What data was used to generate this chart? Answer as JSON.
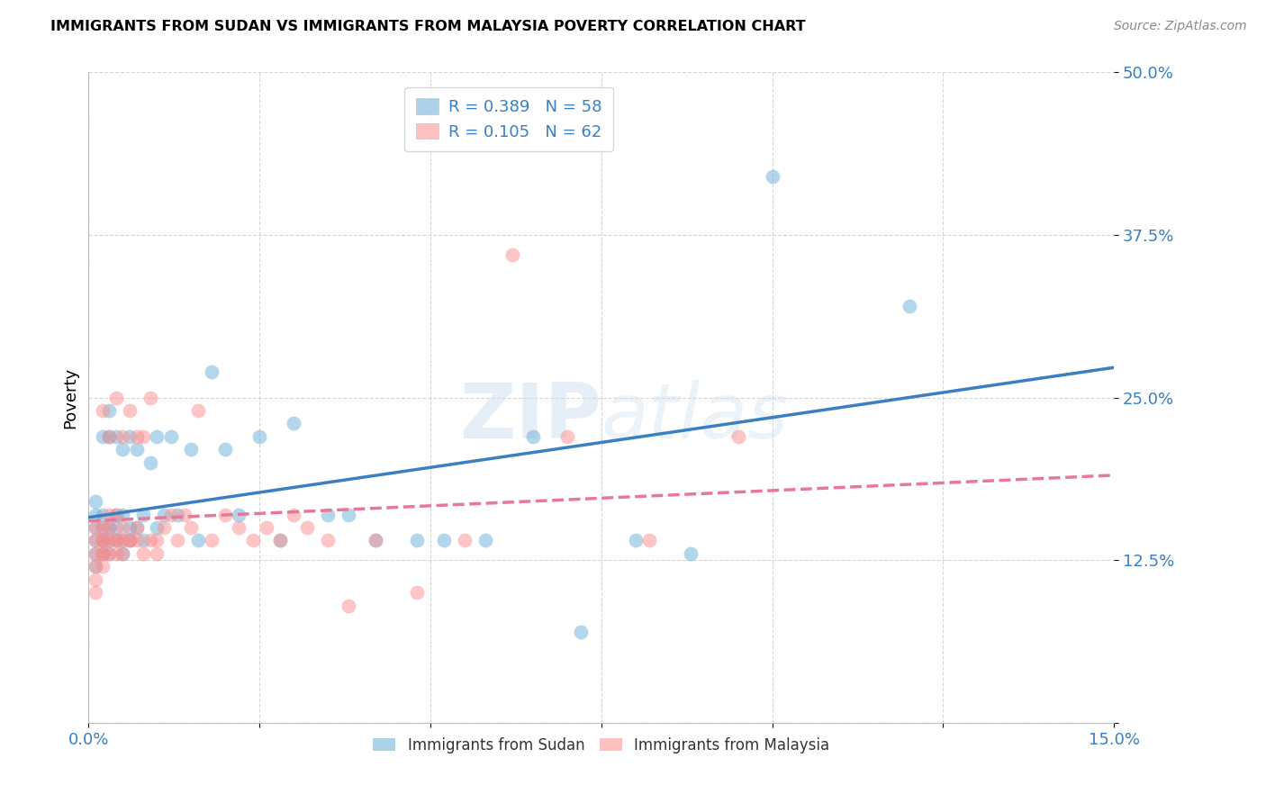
{
  "title": "IMMIGRANTS FROM SUDAN VS IMMIGRANTS FROM MALAYSIA POVERTY CORRELATION CHART",
  "source": "Source: ZipAtlas.com",
  "ylabel": "Poverty",
  "xlim": [
    0.0,
    0.15
  ],
  "ylim": [
    0.0,
    0.5
  ],
  "xticks": [
    0.0,
    0.025,
    0.05,
    0.075,
    0.1,
    0.125,
    0.15
  ],
  "xtick_labels": [
    "0.0%",
    "",
    "",
    "",
    "",
    "",
    "15.0%"
  ],
  "yticks": [
    0.0,
    0.125,
    0.25,
    0.375,
    0.5
  ],
  "ytick_labels": [
    "",
    "12.5%",
    "25.0%",
    "37.5%",
    "50.0%"
  ],
  "sudan_color": "#6baed6",
  "malaysia_color": "#fc8d8d",
  "sudan_line_color": "#3a7fc1",
  "malaysia_line_color": "#e8789a",
  "sudan_R": 0.389,
  "sudan_N": 58,
  "malaysia_R": 0.105,
  "malaysia_N": 62,
  "watermark": "ZIPatlas",
  "sudan_scatter_x": [
    0.001,
    0.001,
    0.001,
    0.001,
    0.001,
    0.001,
    0.002,
    0.002,
    0.002,
    0.002,
    0.002,
    0.002,
    0.003,
    0.003,
    0.003,
    0.003,
    0.003,
    0.004,
    0.004,
    0.004,
    0.004,
    0.005,
    0.005,
    0.005,
    0.005,
    0.006,
    0.006,
    0.006,
    0.007,
    0.007,
    0.008,
    0.008,
    0.009,
    0.01,
    0.01,
    0.011,
    0.012,
    0.013,
    0.015,
    0.016,
    0.018,
    0.02,
    0.022,
    0.025,
    0.028,
    0.03,
    0.035,
    0.038,
    0.042,
    0.048,
    0.052,
    0.058,
    0.065,
    0.072,
    0.08,
    0.088,
    0.1,
    0.12
  ],
  "sudan_scatter_y": [
    0.14,
    0.15,
    0.13,
    0.16,
    0.17,
    0.12,
    0.22,
    0.15,
    0.14,
    0.16,
    0.13,
    0.14,
    0.15,
    0.14,
    0.22,
    0.24,
    0.13,
    0.15,
    0.16,
    0.14,
    0.22,
    0.21,
    0.14,
    0.16,
    0.13,
    0.14,
    0.22,
    0.15,
    0.21,
    0.15,
    0.14,
    0.16,
    0.2,
    0.22,
    0.15,
    0.16,
    0.22,
    0.16,
    0.21,
    0.14,
    0.27,
    0.21,
    0.16,
    0.22,
    0.14,
    0.23,
    0.16,
    0.16,
    0.14,
    0.14,
    0.14,
    0.14,
    0.22,
    0.07,
    0.14,
    0.13,
    0.42,
    0.32
  ],
  "malaysia_scatter_x": [
    0.001,
    0.001,
    0.001,
    0.001,
    0.001,
    0.001,
    0.002,
    0.002,
    0.002,
    0.002,
    0.002,
    0.002,
    0.002,
    0.003,
    0.003,
    0.003,
    0.003,
    0.003,
    0.004,
    0.004,
    0.004,
    0.004,
    0.004,
    0.005,
    0.005,
    0.005,
    0.005,
    0.006,
    0.006,
    0.006,
    0.007,
    0.007,
    0.007,
    0.008,
    0.008,
    0.009,
    0.009,
    0.01,
    0.01,
    0.011,
    0.012,
    0.013,
    0.014,
    0.015,
    0.016,
    0.018,
    0.02,
    0.022,
    0.024,
    0.026,
    0.028,
    0.03,
    0.032,
    0.035,
    0.038,
    0.042,
    0.048,
    0.055,
    0.062,
    0.07,
    0.082,
    0.095
  ],
  "malaysia_scatter_y": [
    0.14,
    0.13,
    0.11,
    0.15,
    0.12,
    0.1,
    0.15,
    0.14,
    0.13,
    0.12,
    0.24,
    0.14,
    0.13,
    0.16,
    0.14,
    0.22,
    0.13,
    0.15,
    0.14,
    0.16,
    0.13,
    0.25,
    0.14,
    0.22,
    0.14,
    0.13,
    0.15,
    0.14,
    0.24,
    0.14,
    0.22,
    0.15,
    0.14,
    0.22,
    0.13,
    0.25,
    0.14,
    0.14,
    0.13,
    0.15,
    0.16,
    0.14,
    0.16,
    0.15,
    0.24,
    0.14,
    0.16,
    0.15,
    0.14,
    0.15,
    0.14,
    0.16,
    0.15,
    0.14,
    0.09,
    0.14,
    0.1,
    0.14,
    0.36,
    0.22,
    0.14,
    0.22
  ]
}
